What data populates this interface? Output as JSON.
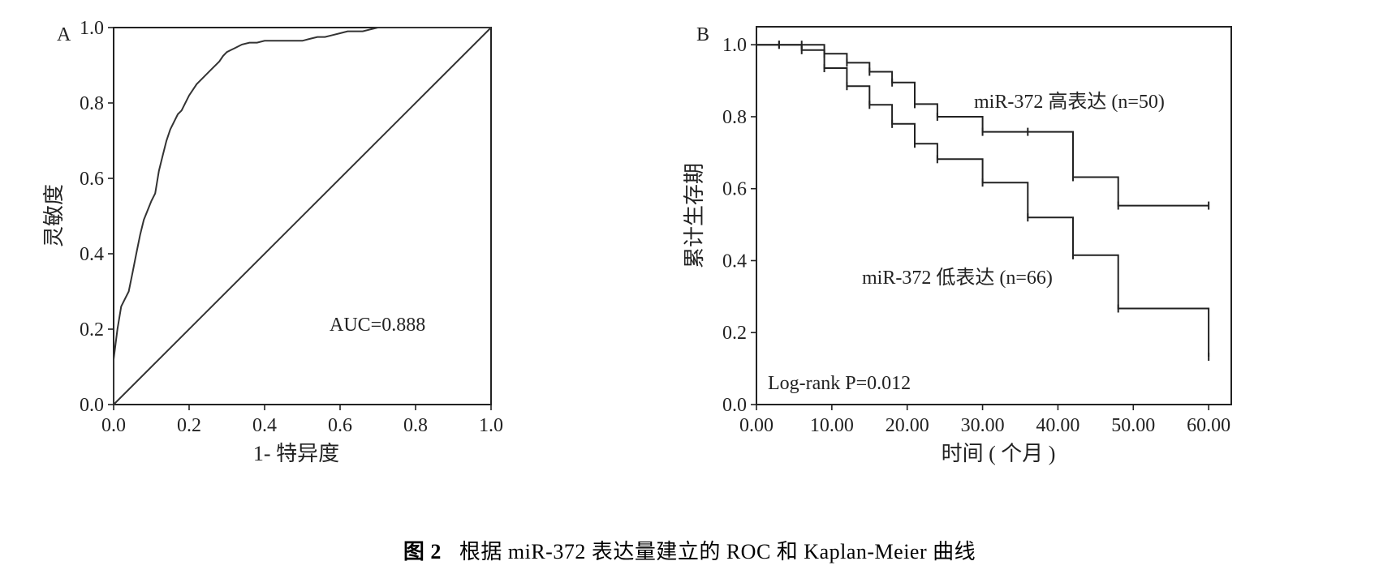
{
  "caption": {
    "number": "图 2",
    "text": "根据 miR-372 表达量建立的 ROC 和 Kaplan-Meier 曲线"
  },
  "chart_data": [
    {
      "panel": "A",
      "type": "line",
      "xlabel": "1- 特异度",
      "ylabel": "灵敏度",
      "xlim": [
        0,
        1
      ],
      "ylim": [
        0,
        1
      ],
      "x_ticks": [
        "0.0",
        "0.2",
        "0.4",
        "0.6",
        "0.8",
        "1.0"
      ],
      "y_ticks": [
        "0.0",
        "0.2",
        "0.4",
        "0.6",
        "0.8",
        "1.0"
      ],
      "annotation": "AUC=0.888",
      "grid": false,
      "series": [
        {
          "x": [
            0,
            0,
            0.01,
            0.02,
            0.03,
            0.04,
            0.05,
            0.06,
            0.07,
            0.08,
            0.1,
            0.11,
            0.12,
            0.13,
            0.14,
            0.15,
            0.16,
            0.17,
            0.18,
            0.2,
            0.22,
            0.24,
            0.26,
            0.28,
            0.29,
            0.3,
            0.31,
            0.32,
            0.34,
            0.36,
            0.38,
            0.4,
            0.42,
            0.44,
            0.46,
            0.48,
            0.5,
            0.52,
            0.54,
            0.56,
            0.58,
            0.6,
            0.62,
            0.64,
            0.66,
            0.68,
            0.7,
            0.72,
            0.76,
            0.8,
            0.9,
            1.0
          ],
          "y": [
            0,
            0.12,
            0.2,
            0.26,
            0.28,
            0.3,
            0.35,
            0.4,
            0.45,
            0.49,
            0.54,
            0.56,
            0.62,
            0.66,
            0.7,
            0.73,
            0.75,
            0.77,
            0.78,
            0.82,
            0.85,
            0.87,
            0.89,
            0.91,
            0.925,
            0.935,
            0.94,
            0.945,
            0.955,
            0.96,
            0.96,
            0.965,
            0.965,
            0.965,
            0.965,
            0.965,
            0.965,
            0.97,
            0.975,
            0.975,
            0.98,
            0.985,
            0.99,
            0.99,
            0.99,
            0.995,
            1.0,
            1.0,
            1.0,
            1.0,
            1.0,
            1.0
          ]
        },
        {
          "x": [
            0,
            1
          ],
          "y": [
            0,
            1
          ]
        }
      ]
    },
    {
      "panel": "B",
      "type": "line",
      "subtype": "step",
      "xlabel": "时间 ( 个月 )",
      "ylabel": "累计生存期",
      "xlim": [
        0,
        63
      ],
      "ylim": [
        0,
        1.05
      ],
      "x_ticks": [
        "0.00",
        "10.00",
        "20.00",
        "30.00",
        "40.00",
        "50.00",
        "60.00"
      ],
      "y_ticks": [
        "0.0",
        "0.2",
        "0.4",
        "0.6",
        "0.8",
        "1.0"
      ],
      "annotation": "Log-rank P=0.012",
      "grid": false,
      "series": [
        {
          "name": "miR-372 高表达 (n=50)",
          "times": [
            0,
            9,
            12,
            15,
            18,
            21,
            24,
            30,
            36,
            42,
            48,
            60
          ],
          "survival": [
            1.0,
            0.975,
            0.95,
            0.925,
            0.895,
            0.835,
            0.8,
            0.758,
            0.758,
            0.632,
            0.553,
            0.553
          ],
          "censored": [
            3,
            6,
            9,
            12,
            15,
            18,
            21,
            24,
            30,
            36,
            42,
            48,
            60
          ]
        },
        {
          "name": "miR-372 低表达 (n=66)",
          "times": [
            0,
            6,
            9,
            12,
            15,
            18,
            21,
            24,
            30,
            36,
            42,
            48,
            60
          ],
          "survival": [
            1.0,
            0.985,
            0.935,
            0.885,
            0.833,
            0.78,
            0.725,
            0.682,
            0.617,
            0.52,
            0.415,
            0.267,
            0.133
          ],
          "censored": [
            3,
            6,
            9,
            12,
            15,
            18,
            21,
            24,
            30,
            36,
            42,
            48,
            60
          ]
        }
      ]
    }
  ]
}
